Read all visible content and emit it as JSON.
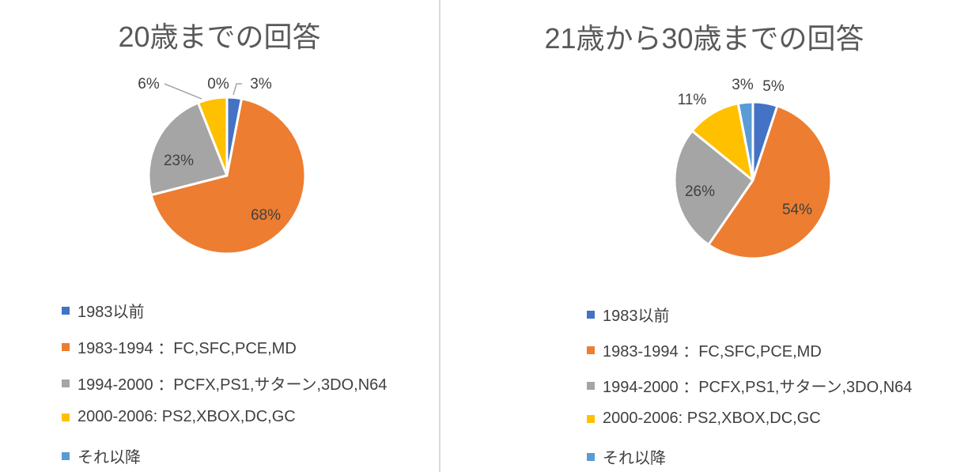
{
  "chart_data": [
    {
      "type": "pie",
      "title": "20歳までの回答",
      "categories": [
        "1983以前",
        "1983-1994 ：FC,SFC,PCE,MD",
        "1994-2000 ：PCFX,PS1,サターン,3DO,N64",
        "2000-2006: PS2,XBOX,DC,GC",
        "それ以降"
      ],
      "values": [
        3,
        68,
        23,
        6,
        0
      ],
      "data_labels": [
        "3%",
        "68%",
        "23%",
        "6%",
        "0%"
      ],
      "colors": [
        "#4472c4",
        "#ed7d31",
        "#a5a5a5",
        "#ffc000",
        "#5b9bd5"
      ],
      "legend_position": "bottom"
    },
    {
      "type": "pie",
      "title": "21歳から30歳までの回答",
      "categories": [
        "1983以前",
        "1983-1994 ：FC,SFC,PCE,MD",
        "1994-2000 ：PCFX,PS1,サターン,3DO,N64",
        "2000-2006: PS2,XBOX,DC,GC",
        "それ以降"
      ],
      "values": [
        5,
        54,
        26,
        11,
        3
      ],
      "data_labels": [
        "5%",
        "54%",
        "26%",
        "11%",
        "3%"
      ],
      "colors": [
        "#4472c4",
        "#ed7d31",
        "#a5a5a5",
        "#ffc000",
        "#5b9bd5"
      ],
      "legend_position": "bottom"
    }
  ]
}
